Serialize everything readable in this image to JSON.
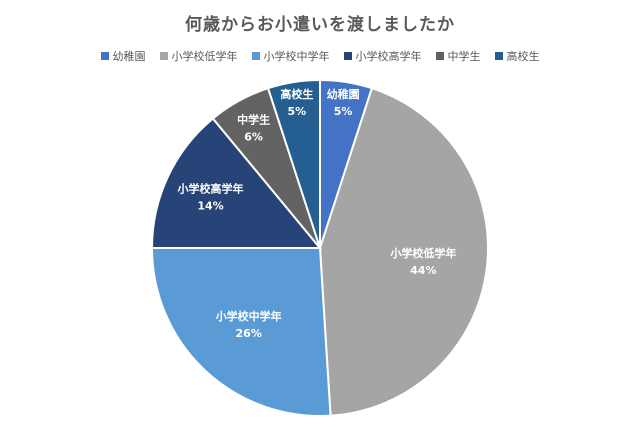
{
  "chart_data": {
    "type": "pie",
    "title": "何歳からお小遣いを渡しましたか",
    "legend_position": "top",
    "categories": [
      "幼稚園",
      "小学校低学年",
      "小学校中学年",
      "小学校高学年",
      "中学生",
      "高校生"
    ],
    "values": [
      5,
      44,
      26,
      14,
      6,
      5
    ],
    "value_labels": [
      "5%",
      "44%",
      "26%",
      "14%",
      "6%",
      "5%"
    ],
    "colors": [
      "#4472C4",
      "#A5A5A5",
      "#5B9BD5",
      "#264478",
      "#636363",
      "#255E91"
    ]
  }
}
